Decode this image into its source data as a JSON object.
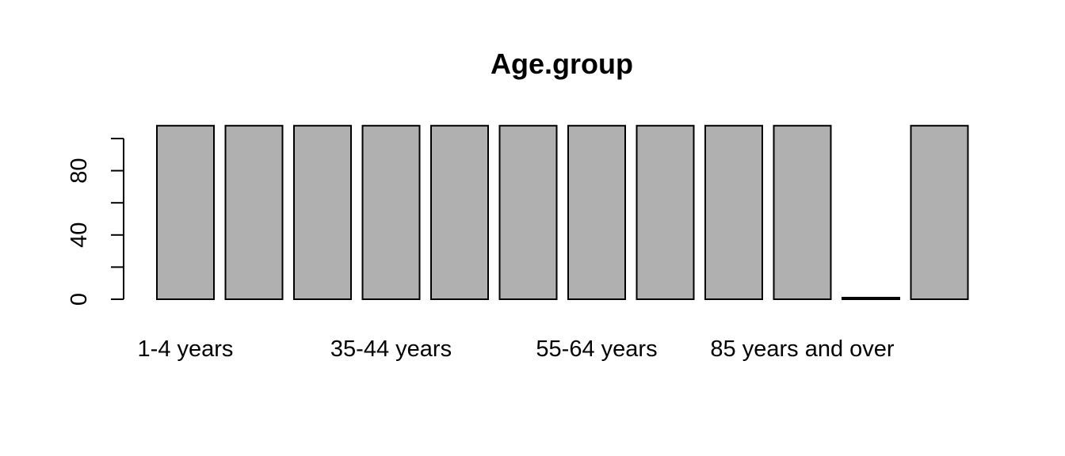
{
  "chart_data": {
    "type": "bar",
    "title": "Age.group",
    "xlabel": "",
    "ylabel": "",
    "categories": [
      "1-4 years",
      "",
      "",
      "35-44 years",
      "",
      "",
      "55-64 years",
      "",
      "",
      "85 years and over",
      "",
      ""
    ],
    "values": [
      108,
      108,
      108,
      108,
      108,
      108,
      108,
      108,
      108,
      108,
      1,
      108
    ],
    "ylim": [
      0,
      108
    ],
    "yticks": [
      0,
      20,
      40,
      60,
      80,
      100
    ],
    "ytick_labels": [
      "0",
      "",
      "40",
      "",
      "80",
      ""
    ],
    "bar_color": "#b0b0b0",
    "grid": false,
    "legend": "none"
  }
}
